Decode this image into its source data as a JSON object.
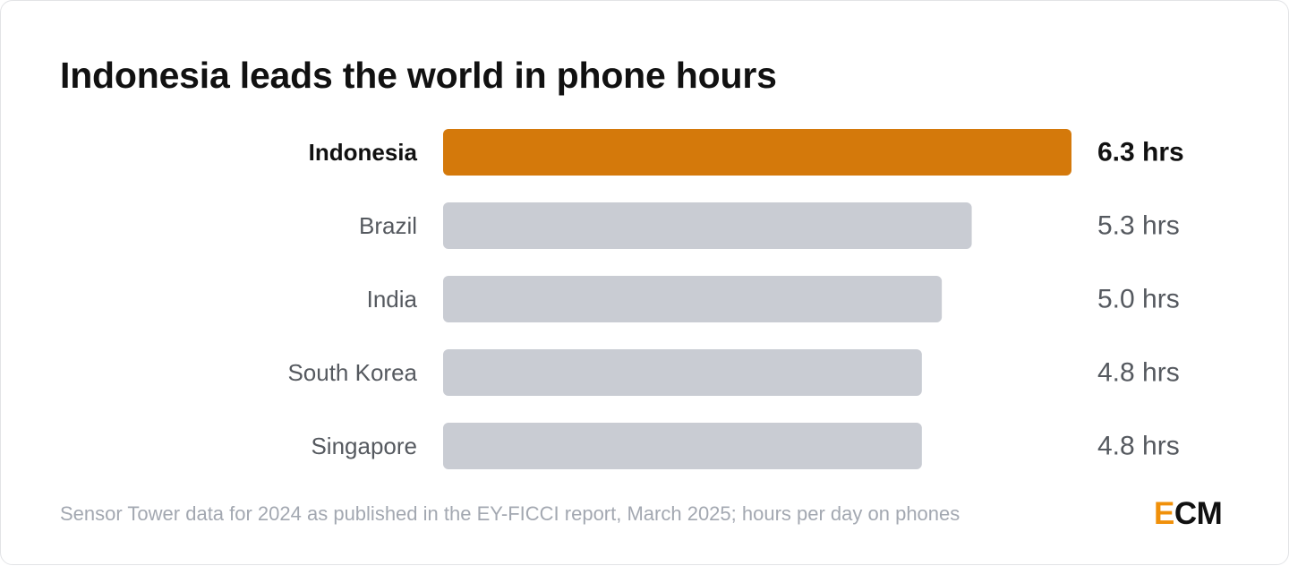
{
  "chart_data": {
    "type": "bar",
    "orientation": "horizontal",
    "title": "Indonesia leads the world in phone hours",
    "categories": [
      "Indonesia",
      "Brazil",
      "India",
      "South Korea",
      "Singapore"
    ],
    "values": [
      6.3,
      5.3,
      5.0,
      4.8,
      4.8
    ],
    "value_labels": [
      "6.3 hrs",
      "5.3 hrs",
      "5.0 hrs",
      "4.8 hrs",
      "4.8 hrs"
    ],
    "highlight_index": 0,
    "colors": {
      "highlight": "#d4790b",
      "default": "#c9ccd3"
    },
    "xlim": [
      0,
      6.3
    ],
    "grid": false,
    "legend": "none"
  },
  "footer": {
    "source": "Sensor Tower data for 2024 as published in the EY-FICCI report, March 2025; hours per day on phones"
  },
  "logo": {
    "first": "E",
    "rest": "CM"
  }
}
